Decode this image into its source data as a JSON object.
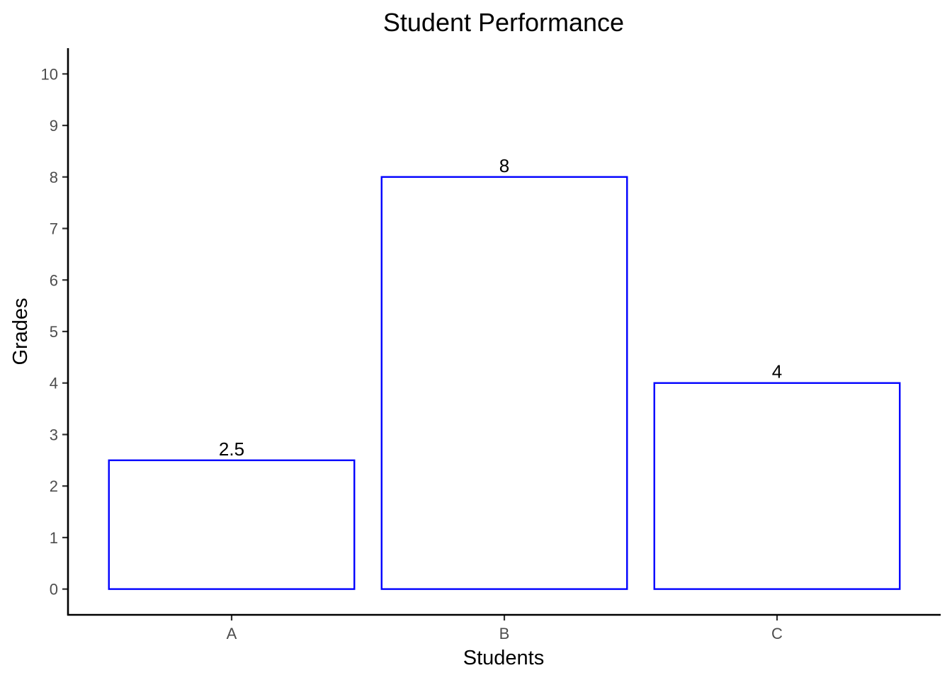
{
  "chart_data": {
    "type": "bar",
    "title": "Student Performance",
    "xlabel": "Students",
    "ylabel": "Grades",
    "categories": [
      "A",
      "B",
      "C"
    ],
    "values": [
      2.5,
      8,
      4
    ],
    "data_labels": [
      "2.5",
      "8",
      "4"
    ],
    "y_ticks": [
      0,
      1,
      2,
      3,
      4,
      5,
      6,
      7,
      8,
      9,
      10
    ],
    "ylim": [
      -0.5,
      10.5
    ],
    "grid": false,
    "legend": "none",
    "bar_fill": "#ffffff",
    "bar_outline": "#0000ff"
  }
}
